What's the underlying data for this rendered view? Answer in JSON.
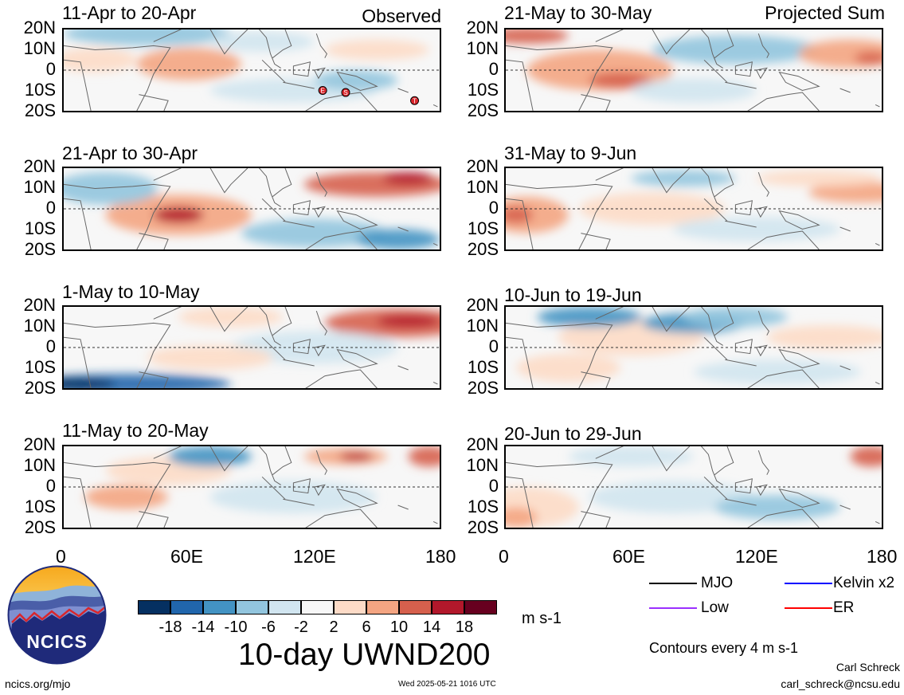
{
  "header": {
    "observed_label": "Observed",
    "projected_label": "Projected Sum"
  },
  "panels": {
    "left": [
      {
        "title": "11-Apr to 20-Apr",
        "storm_markers": [
          {
            "letter": "E",
            "lon": 124,
            "lat": -10
          },
          {
            "letter": "S",
            "lon": 135,
            "lat": -11
          },
          {
            "letter": "T",
            "lon": 168,
            "lat": -15
          }
        ]
      },
      {
        "title": "21-Apr to 30-Apr",
        "storm_markers": []
      },
      {
        "title": "1-May to 10-May",
        "storm_markers": []
      },
      {
        "title": "11-May to 20-May",
        "storm_markers": []
      }
    ],
    "right": [
      {
        "title": "21-May to 30-May",
        "storm_markers": []
      },
      {
        "title": "31-May to 9-Jun",
        "storm_markers": []
      },
      {
        "title": "10-Jun to 19-Jun",
        "storm_markers": []
      },
      {
        "title": "20-Jun to 29-Jun",
        "storm_markers": []
      }
    ]
  },
  "axes": {
    "lat_labels": [
      "20N",
      "10N",
      "0",
      "10S",
      "20S"
    ],
    "lon_labels": [
      "0",
      "60E",
      "120E",
      "180"
    ]
  },
  "colorbar": {
    "colors": [
      "#053061",
      "#2166ac",
      "#4393c3",
      "#92c5de",
      "#d1e5f0",
      "#f7f7f7",
      "#fddbc7",
      "#f4a582",
      "#d6604d",
      "#b2182b",
      "#67001f"
    ],
    "labels": [
      "-18",
      "-14",
      "-10",
      "-6",
      "-2",
      "2",
      "6",
      "10",
      "14",
      "18"
    ],
    "units": "m s-1"
  },
  "title": "10-day UWND200",
  "legend": {
    "items": [
      {
        "label": "MJO",
        "color": "#000000"
      },
      {
        "label": "Kelvin x2",
        "color": "#0000ff"
      },
      {
        "label": "Low",
        "color": "#9b30ff"
      },
      {
        "label": "ER",
        "color": "#ff0000"
      }
    ],
    "contours_note": "Contours every 4 m s-1"
  },
  "logo": {
    "text": "NCICS"
  },
  "footer": {
    "url": "ncics.org/mjo",
    "timestamp": "Wed 2025-05-21 1016 UTC",
    "author": "Carl Schreck",
    "email": "carl_schreck@ncsu.edu"
  }
}
